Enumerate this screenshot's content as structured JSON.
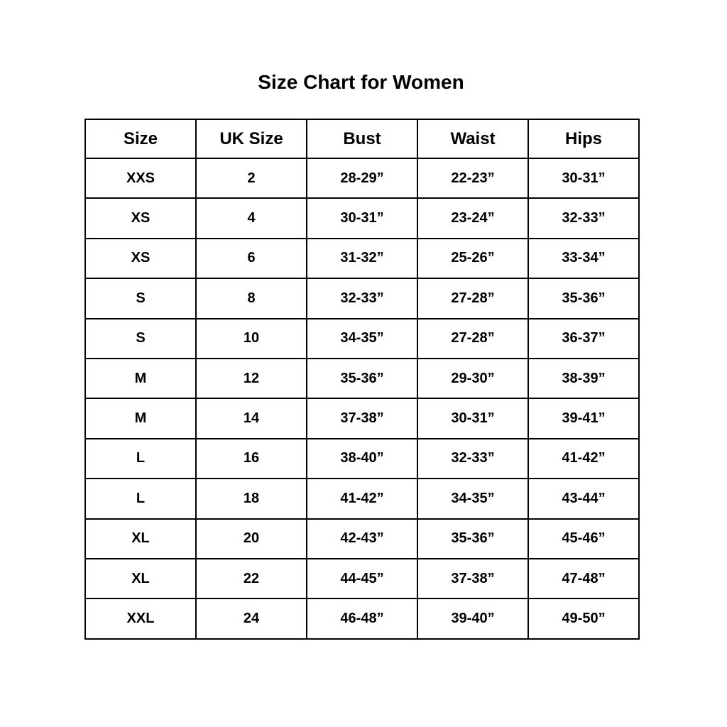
{
  "title": "Size Chart for Women",
  "headers": [
    "Size",
    "UK Size",
    "Bust",
    "Waist",
    "Hips"
  ],
  "rows": [
    [
      "XXS",
      "2",
      "28-29”",
      "22-23”",
      "30-31”"
    ],
    [
      "XS",
      "4",
      "30-31”",
      "23-24”",
      "32-33”"
    ],
    [
      "XS",
      "6",
      "31-32”",
      "25-26”",
      "33-34”"
    ],
    [
      "S",
      "8",
      "32-33”",
      "27-28”",
      "35-36”"
    ],
    [
      "S",
      "10",
      "34-35”",
      "27-28”",
      "36-37”"
    ],
    [
      "M",
      "12",
      "35-36”",
      "29-30”",
      "38-39”"
    ],
    [
      "M",
      "14",
      "37-38”",
      "30-31”",
      "39-41”"
    ],
    [
      "L",
      "16",
      "38-40”",
      "32-33”",
      "41-42”"
    ],
    [
      "L",
      "18",
      "41-42”",
      "34-35”",
      "43-44”"
    ],
    [
      "XL",
      "20",
      "42-43”",
      "35-36”",
      "45-46”"
    ],
    [
      "XL",
      "22",
      "44-45”",
      "37-38”",
      "47-48”"
    ],
    [
      "XXL",
      "24",
      "46-48”",
      "39-40”",
      "49-50”"
    ]
  ]
}
